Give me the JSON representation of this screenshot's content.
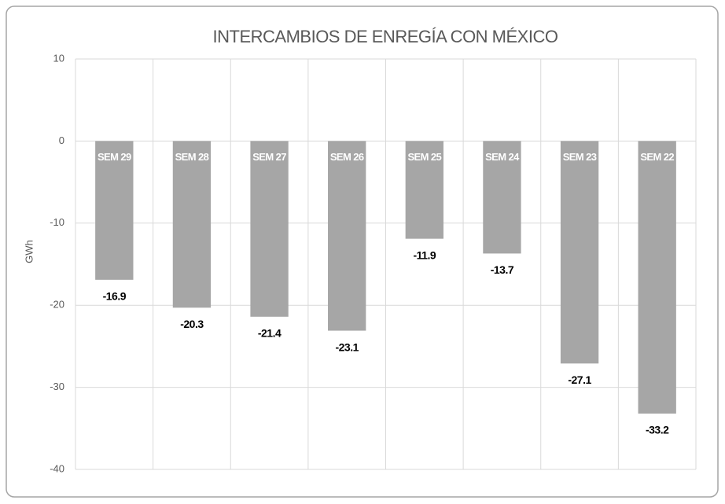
{
  "chart_data": {
    "type": "bar",
    "title": "INTERCAMBIOS DE ENREGÍA CON MÉXICO",
    "y_label": "GWh",
    "categories": [
      "SEM 29",
      "SEM 28",
      "SEM 27",
      "SEM 26",
      "SEM 25",
      "SEM 24",
      "SEM 23",
      "SEM 22"
    ],
    "values": [
      -16.9,
      -20.3,
      -21.4,
      -23.1,
      -11.9,
      -13.7,
      -27.1,
      -33.2
    ],
    "color": "#a6a6a6",
    "ylim": [
      -40,
      10
    ],
    "yticks": [
      -40,
      -30,
      -20,
      -10,
      0,
      10
    ],
    "grid": true
  }
}
